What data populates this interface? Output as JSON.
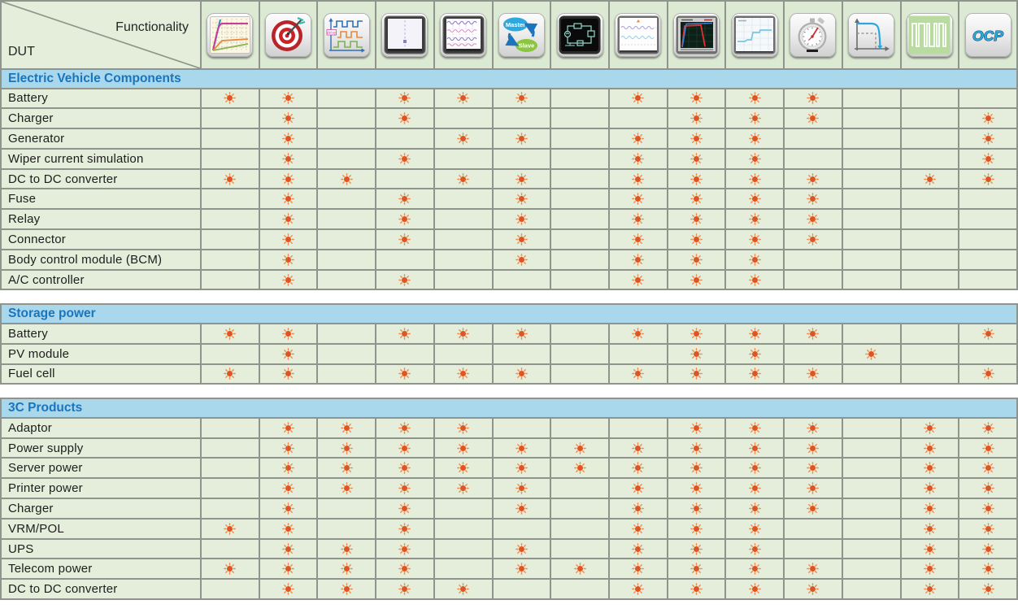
{
  "header": {
    "functionality_label": "Functionality",
    "dut_label": "DUT",
    "icons": [
      {
        "id": "vi-curve",
        "name": "vi-operating-curve-icon"
      },
      {
        "id": "target",
        "name": "high-accuracy-target-icon"
      },
      {
        "id": "pulse-delay",
        "name": "dynamic-pulse-delay-icon",
        "text": "delay"
      },
      {
        "id": "screen-blank",
        "name": "measurement-display-icon"
      },
      {
        "id": "screen-waves",
        "name": "waveform-display-icon"
      },
      {
        "id": "master-slave",
        "name": "master-slave-parallel-icon",
        "text_master": "Master",
        "text_slave": "Slave"
      },
      {
        "id": "circuit",
        "name": "circuit-simulation-screen-icon"
      },
      {
        "id": "ripple",
        "name": "ripple-noise-screen-icon"
      },
      {
        "id": "discharge",
        "name": "discharge-curve-screen-icon"
      },
      {
        "id": "step-curve",
        "name": "step-response-screen-icon"
      },
      {
        "id": "stopwatch",
        "name": "timing-stopwatch-icon"
      },
      {
        "id": "iv-droop",
        "name": "iv-curve-simulation-icon"
      },
      {
        "id": "pulse-train",
        "name": "pwm-pulse-train-icon"
      },
      {
        "id": "ocp",
        "name": "ocp-test-icon",
        "text": "OCP"
      }
    ]
  },
  "marker": {
    "symbol": "sun",
    "color": "#e05420",
    "ray_color": "#ee8a52"
  },
  "colors": {
    "cell_green": "#e4eedb",
    "icon_band_green": "#dcead3",
    "section_band_blue": "#a9d7ec",
    "section_text_blue": "#1b75bc",
    "grid_gray": "#8f948c",
    "marker_orange": "#e05420"
  },
  "sections": [
    {
      "title": "Electric Vehicle Components",
      "rows": [
        {
          "label": "Battery",
          "marks": [
            1,
            2,
            4,
            5,
            6,
            8,
            9,
            10,
            11
          ]
        },
        {
          "label": "Charger",
          "marks": [
            2,
            4,
            9,
            10,
            11,
            14
          ]
        },
        {
          "label": "Generator",
          "marks": [
            2,
            5,
            6,
            8,
            9,
            10,
            14
          ]
        },
        {
          "label": "Wiper current simulation",
          "marks": [
            2,
            4,
            8,
            9,
            10,
            14
          ]
        },
        {
          "label": "DC to DC converter",
          "marks": [
            1,
            2,
            3,
            5,
            6,
            8,
            9,
            10,
            11,
            13,
            14
          ]
        },
        {
          "label": "Fuse",
          "marks": [
            2,
            4,
            6,
            8,
            9,
            10,
            11
          ]
        },
        {
          "label": "Relay",
          "marks": [
            2,
            4,
            6,
            8,
            9,
            10,
            11
          ]
        },
        {
          "label": "Connector",
          "marks": [
            2,
            4,
            6,
            8,
            9,
            10,
            11
          ]
        },
        {
          "label": "Body control module (BCM)",
          "marks": [
            2,
            6,
            8,
            9,
            10
          ]
        },
        {
          "label": "A/C controller",
          "marks": [
            2,
            4,
            8,
            9,
            10
          ]
        }
      ]
    },
    {
      "title": "Storage power",
      "rows": [
        {
          "label": "Battery",
          "marks": [
            1,
            2,
            4,
            5,
            6,
            8,
            9,
            10,
            11,
            14
          ]
        },
        {
          "label": "PV module",
          "marks": [
            2,
            9,
            10,
            12
          ]
        },
        {
          "label": "Fuel cell",
          "marks": [
            1,
            2,
            4,
            5,
            6,
            8,
            9,
            10,
            11,
            14
          ]
        }
      ]
    },
    {
      "title": "3C Products",
      "rows": [
        {
          "label": "Adaptor",
          "marks": [
            2,
            3,
            4,
            5,
            9,
            10,
            11,
            13,
            14
          ]
        },
        {
          "label": "Power supply",
          "marks": [
            2,
            3,
            4,
            5,
            6,
            7,
            8,
            9,
            10,
            11,
            13,
            14
          ]
        },
        {
          "label": "Server power",
          "marks": [
            2,
            3,
            4,
            5,
            6,
            7,
            8,
            9,
            10,
            11,
            13,
            14
          ]
        },
        {
          "label": "Printer power",
          "marks": [
            2,
            3,
            4,
            5,
            6,
            8,
            9,
            10,
            11,
            13,
            14
          ]
        },
        {
          "label": "Charger",
          "marks": [
            2,
            4,
            6,
            8,
            9,
            10,
            11,
            13,
            14
          ]
        },
        {
          "label": "VRM/POL",
          "marks": [
            1,
            2,
            4,
            8,
            9,
            10,
            13,
            14
          ]
        },
        {
          "label": "UPS",
          "marks": [
            2,
            3,
            4,
            6,
            8,
            9,
            10,
            13,
            14
          ]
        },
        {
          "label": "Telecom power",
          "marks": [
            1,
            2,
            3,
            4,
            6,
            7,
            8,
            9,
            10,
            11,
            13,
            14
          ]
        },
        {
          "label": "DC to DC converter",
          "marks": [
            2,
            3,
            4,
            5,
            8,
            9,
            10,
            11,
            13,
            14
          ]
        }
      ]
    }
  ]
}
